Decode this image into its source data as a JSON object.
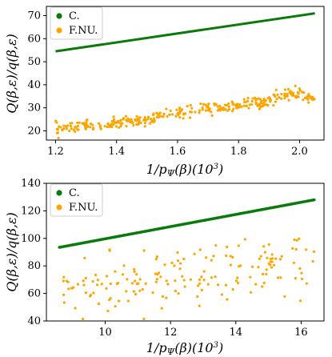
{
  "colors": {
    "c_series": "#0a7a0a",
    "fnu_series": "#ffa500"
  },
  "chart_data": [
    {
      "type": "scatter",
      "xlabel": "1/p_Ψ(β)(10^3)",
      "ylabel": "Q(β,ε)/q(β,ε)",
      "xlim": [
        1.17,
        2.08
      ],
      "ylim": [
        16,
        74
      ],
      "xticks": [
        "1.2",
        "1.4",
        "1.6",
        "1.8",
        "2.0"
      ],
      "yticks": [
        "20",
        "30",
        "40",
        "50",
        "60",
        "70"
      ],
      "legend_position": "top-left",
      "series": [
        {
          "name": "C.",
          "style": "line",
          "x": [
            1.2,
            2.05
          ],
          "y": [
            54.5,
            71.0
          ]
        },
        {
          "name": "F.NU.",
          "style": "points",
          "trend_x": [
            1.2,
            1.3,
            1.4,
            1.5,
            1.6,
            1.7,
            1.8,
            1.9,
            1.95,
            2.0,
            2.03,
            2.05
          ],
          "trend_y": [
            21,
            22,
            23,
            25,
            28,
            30,
            31,
            33,
            36,
            36,
            35,
            34
          ],
          "noise": 2.2,
          "count": 340
        }
      ]
    },
    {
      "type": "scatter",
      "xlabel": "1/p_Ψ(β)(10^3)",
      "ylabel": "Q(β,ε)/q(β,ε)",
      "xlim": [
        8.2,
        16.7
      ],
      "ylim": [
        40,
        140
      ],
      "xticks": [
        "10",
        "12",
        "14",
        "16"
      ],
      "yticks": [
        "40",
        "60",
        "80",
        "100",
        "120",
        "140"
      ],
      "legend_position": "top-left",
      "series": [
        {
          "name": "C.",
          "style": "dots",
          "x": [
            8.6,
            16.4
          ],
          "y": [
            93.5,
            128.0
          ],
          "count": 210
        },
        {
          "name": "F.NU.",
          "style": "points",
          "trend_x": [
            8.7,
            10,
            12,
            14,
            15,
            16.4
          ],
          "trend_y": [
            58,
            65,
            70,
            73,
            80,
            84
          ],
          "noise": 11,
          "count": 170
        }
      ]
    }
  ]
}
